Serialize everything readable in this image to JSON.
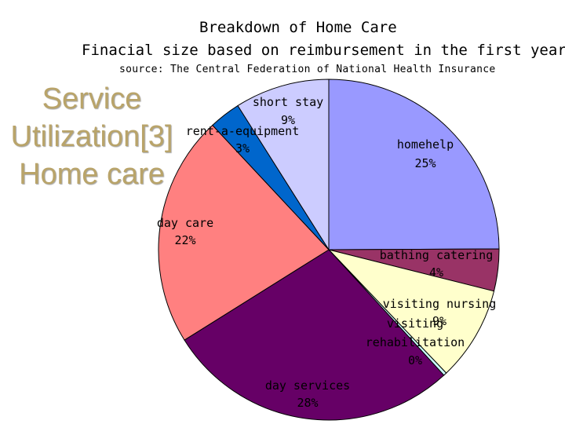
{
  "slide": {
    "side_title_lines": [
      "Service",
      "Utilization[3]",
      "Home care"
    ]
  },
  "chart_data": {
    "type": "pie",
    "title": "Breakdown of Home Care",
    "subtitle": "Finacial size based on reimbursement in the first year",
    "source": "source: The Central Federation of National Health Insurance",
    "slices": [
      {
        "label": "homehelp",
        "value": 25,
        "value_label": "25%",
        "color": "#9999ff"
      },
      {
        "label": "bathing catering",
        "value": 4,
        "value_label": "4%",
        "color": "#993366"
      },
      {
        "label": "visiting nursing",
        "value": 9,
        "value_label": "9%",
        "color": "#ffffcc"
      },
      {
        "label": "visiting rehabilitation",
        "value": 0.3,
        "value_label": "0%",
        "color": "#ccffff"
      },
      {
        "label": "day services",
        "value": 28,
        "value_label": "28%",
        "color": "#660066"
      },
      {
        "label": "day care",
        "value": 22,
        "value_label": "22%",
        "color": "#ff8080"
      },
      {
        "label": "rent-a-equipment",
        "value": 3,
        "value_label": "3%",
        "color": "#0066cc"
      },
      {
        "label": "short stay",
        "value": 9,
        "value_label": "9%",
        "color": "#ccccff"
      }
    ]
  }
}
